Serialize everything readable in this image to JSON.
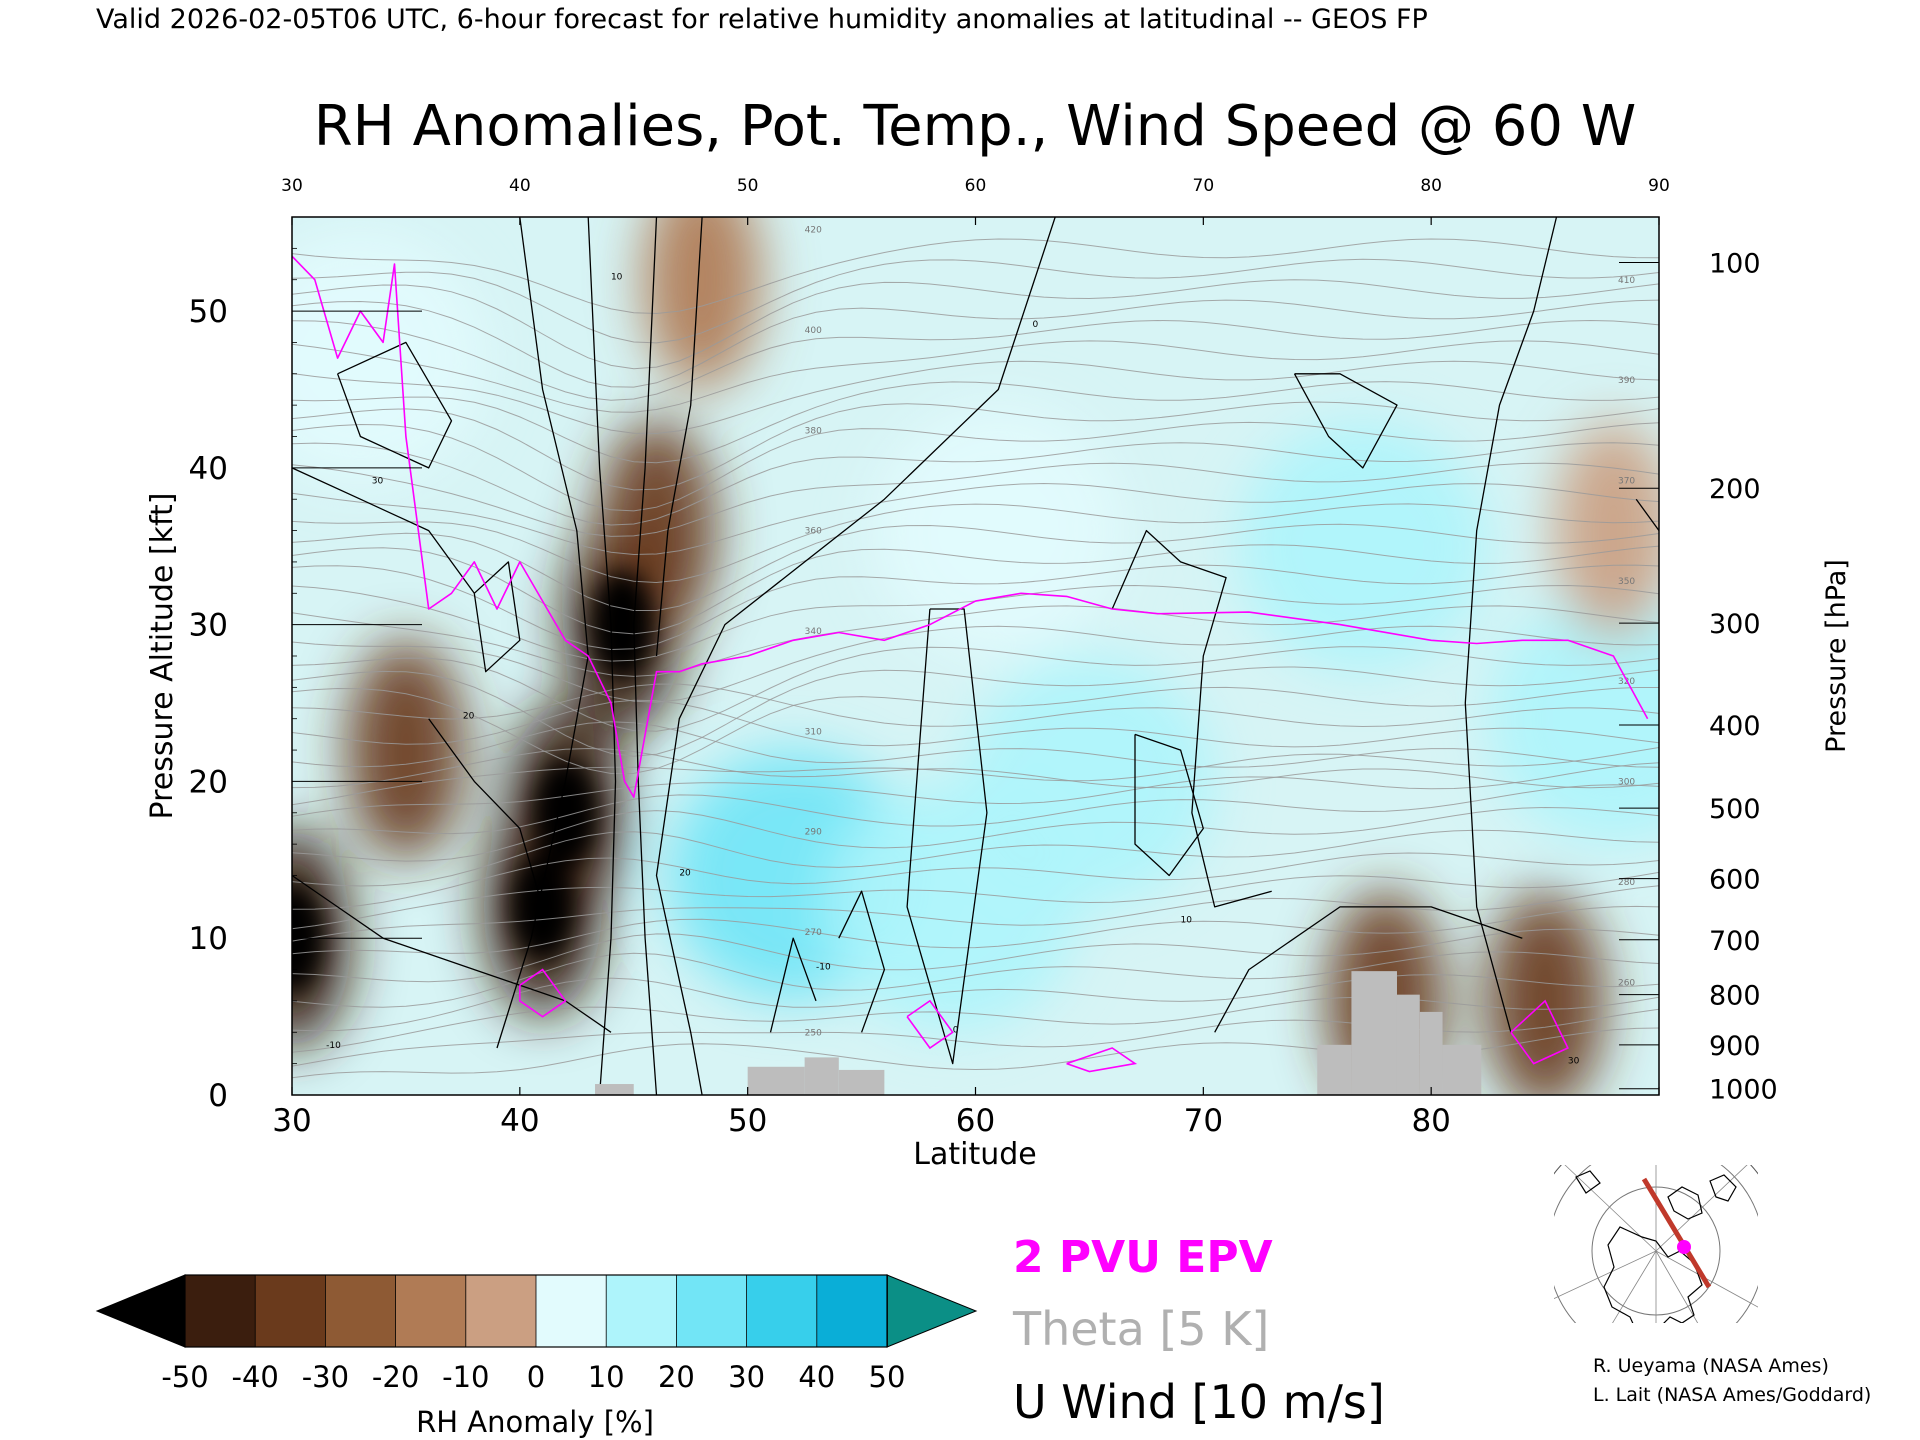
{
  "header": {
    "valid_line": "Valid 2026-02-05T06 UTC, 6-hour forecast for relative humidity anomalies at latitudinal -- GEOS FP"
  },
  "colors": {
    "epv": "#ff00ff",
    "theta": "#9a9a9a",
    "wind": "#000000",
    "terrain": "#bdbdbd",
    "section_line": "#c0392b",
    "point": "#ff00ff"
  },
  "chart_data": {
    "type": "heatmap",
    "title": "RH Anomalies, Pot. Temp., Wind Speed @ 60 W",
    "xlabel": "Latitude",
    "ylabel": "Pressure Altitude [kft]",
    "ylabel_right": "Pressure [hPa]",
    "xlim": [
      30,
      90
    ],
    "ylim": [
      0,
      56
    ],
    "x_ticks": [
      30,
      40,
      50,
      60,
      70,
      80,
      90
    ],
    "x_ticks_top": [
      30,
      40,
      50,
      60,
      70,
      80,
      90
    ],
    "y_ticks": [
      0,
      10,
      20,
      30,
      40,
      50
    ],
    "pressure_ticks": [
      {
        "hPa": "100",
        "kft": 53.1
      },
      {
        "hPa": "200",
        "kft": 38.7
      },
      {
        "hPa": "300",
        "kft": 30.1
      },
      {
        "hPa": "400",
        "kft": 23.6
      },
      {
        "hPa": "500",
        "kft": 18.3
      },
      {
        "hPa": "600",
        "kft": 13.8
      },
      {
        "hPa": "700",
        "kft": 9.9
      },
      {
        "hPa": "800",
        "kft": 6.4
      },
      {
        "hPa": "900",
        "kft": 3.2
      },
      {
        "hPa": "1000",
        "kft": 0.4
      }
    ],
    "rh_anomaly_field": [
      {
        "lat": 30,
        "kft": 10,
        "value": -50
      },
      {
        "lat": 35,
        "kft": 22,
        "value": -35
      },
      {
        "lat": 41,
        "kft": 12,
        "value": -50
      },
      {
        "lat": 42,
        "kft": 18,
        "value": -45
      },
      {
        "lat": 44.5,
        "kft": 30,
        "value": -50
      },
      {
        "lat": 46,
        "kft": 36,
        "value": -35
      },
      {
        "lat": 33,
        "kft": 47,
        "value": 10
      },
      {
        "lat": 52,
        "kft": 14,
        "value": 30
      },
      {
        "lat": 59,
        "kft": 12,
        "value": 25
      },
      {
        "lat": 61,
        "kft": 36,
        "value": 15
      },
      {
        "lat": 65,
        "kft": 20,
        "value": 25
      },
      {
        "lat": 77,
        "kft": 35,
        "value": 20
      },
      {
        "lat": 78,
        "kft": 6,
        "value": -40
      },
      {
        "lat": 85,
        "kft": 6,
        "value": -40
      },
      {
        "lat": 88,
        "kft": 24,
        "value": 20
      },
      {
        "lat": 88,
        "kft": 36,
        "value": -10
      },
      {
        "lat": 48,
        "kft": 52,
        "value": -12
      }
    ],
    "epv_2pvu": [
      [
        30,
        53.5
      ],
      [
        31,
        52
      ],
      [
        32,
        47
      ],
      [
        33,
        50
      ],
      [
        34,
        48
      ],
      [
        34.5,
        53
      ],
      [
        35,
        42
      ],
      [
        36,
        31
      ],
      [
        37,
        32
      ],
      [
        38,
        34
      ],
      [
        39,
        31
      ],
      [
        40,
        34
      ],
      [
        41,
        31.5
      ],
      [
        42,
        29
      ],
      [
        43,
        28
      ],
      [
        44,
        25
      ],
      [
        44.6,
        20
      ],
      [
        45,
        19
      ],
      [
        46,
        27
      ],
      [
        47,
        27
      ],
      [
        48,
        27.5
      ],
      [
        50,
        28
      ],
      [
        52,
        29
      ],
      [
        54,
        29.5
      ],
      [
        56,
        29
      ],
      [
        58,
        30
      ],
      [
        60,
        31.5
      ],
      [
        62,
        32
      ],
      [
        64,
        31.8
      ],
      [
        66,
        31
      ],
      [
        68,
        30.7
      ],
      [
        72,
        30.8
      ],
      [
        76,
        30
      ],
      [
        80,
        29
      ],
      [
        82,
        28.8
      ],
      [
        84,
        29
      ],
      [
        86,
        29
      ],
      [
        88,
        28
      ],
      [
        89.5,
        24
      ]
    ],
    "theta_labels": [
      "420",
      "410",
      "400",
      "390",
      "380",
      "370",
      "360",
      "350",
      "340",
      "320",
      "310",
      "300",
      "290",
      "280",
      "270",
      "260",
      "250"
    ],
    "wind_labels": [
      "0",
      "10",
      "20",
      "30",
      "-10"
    ],
    "terrain": [
      {
        "lat0": 43.3,
        "lat1": 45,
        "kft": 0.7
      },
      {
        "lat0": 50,
        "lat1": 52.5,
        "kft": 1.8
      },
      {
        "lat0": 52.5,
        "lat1": 54,
        "kft": 2.4
      },
      {
        "lat0": 54,
        "lat1": 56,
        "kft": 1.6
      },
      {
        "lat0": 75,
        "lat1": 76.5,
        "kft": 3.2
      },
      {
        "lat0": 76.5,
        "lat1": 78.5,
        "kft": 7.9
      },
      {
        "lat0": 78.5,
        "lat1": 79.5,
        "kft": 6.4
      },
      {
        "lat0": 79.5,
        "lat1": 80.5,
        "kft": 5.3
      },
      {
        "lat0": 80.5,
        "lat1": 82.2,
        "kft": 3.2
      }
    ],
    "colorbar": {
      "ticks": [
        "-50",
        "-40",
        "-30",
        "-20",
        "-10",
        "0",
        "10",
        "20",
        "30",
        "40",
        "50"
      ],
      "label": "RH Anomaly [%]",
      "colors": [
        "#000000",
        "#3b1e0e",
        "#6a3a1c",
        "#8e5a34",
        "#b07b55",
        "#cb9f82",
        "#ead0c1",
        "#e2fbfd",
        "#aef4fb",
        "#72e5f6",
        "#37cfeb",
        "#0aaed7",
        "#037e9c",
        "#0b8f86"
      ]
    },
    "legend": {
      "epv": "2 PVU EPV",
      "theta": "Theta [5 K]",
      "wind": "U Wind [10 m/s]"
    }
  },
  "credits": {
    "line1": "R. Ueyama (NASA Ames)",
    "line2": "L. Lait (NASA Ames/Goddard)"
  }
}
